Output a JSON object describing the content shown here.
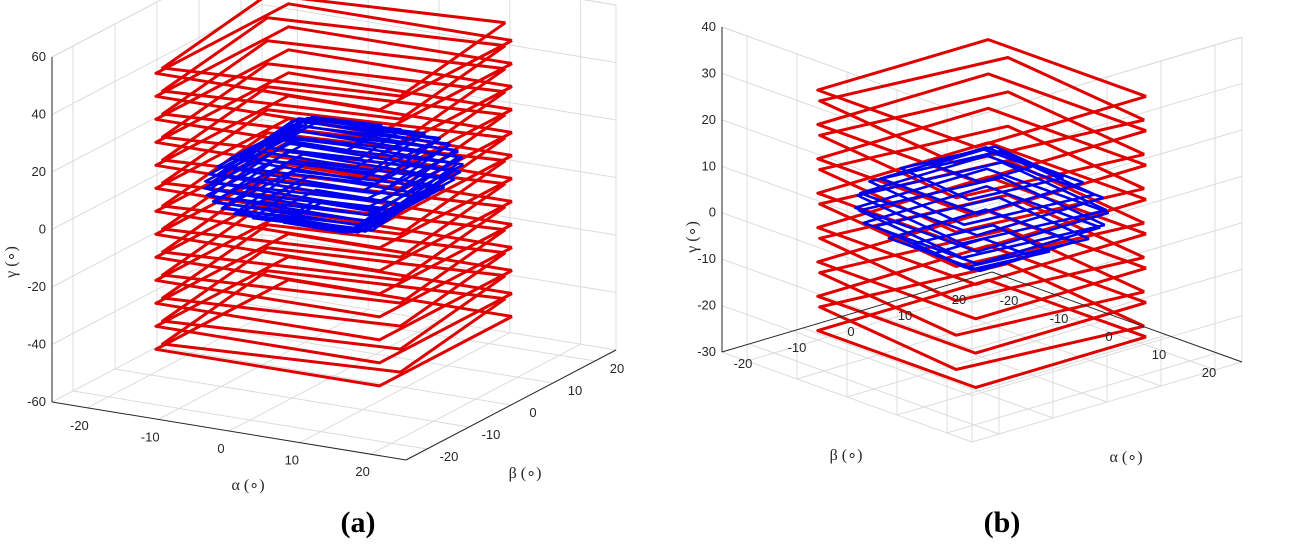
{
  "chart_data": [
    {
      "panel": "(a)",
      "type": "line",
      "plot": "3d",
      "xlabel": "α (∘)",
      "ylabel": "β (∘)",
      "zlabel": "γ (∘)",
      "xlim": [
        -25,
        25
      ],
      "ylim": [
        -25,
        25
      ],
      "zlim": [
        -60,
        60
      ],
      "xticks": [
        "-20",
        "-10",
        "0",
        "10",
        "20"
      ],
      "yticks": [
        "-20",
        "-10",
        "0",
        "10",
        "20"
      ],
      "zticks": [
        "-60",
        "-40",
        "-20",
        "0",
        "20",
        "40",
        "60"
      ],
      "grid": true,
      "series": [
        {
          "color": "#e00000",
          "description_values": {
            "half_width": 22,
            "z_from": -45,
            "z_to": 55,
            "z_step": 4
          }
        },
        {
          "color": "#0000ee",
          "description_values": {
            "half_width": 16,
            "z_from": -5,
            "z_to": 25,
            "z_step": 1.2
          }
        }
      ]
    },
    {
      "panel": "(b)",
      "type": "line",
      "plot": "3d",
      "xlabel": "α (∘)",
      "ylabel": "β (∘)",
      "zlabel": "γ (∘)",
      "xlim": [
        -25,
        25
      ],
      "ylim": [
        -25,
        25
      ],
      "zlim": [
        -30,
        40
      ],
      "xticks": [
        "-20",
        "-10",
        "0",
        "10",
        "20"
      ],
      "yticks": [
        "-20",
        "-10",
        "0",
        "10",
        "20"
      ],
      "zticks": [
        "-30",
        "-20",
        "-10",
        "0",
        "10",
        "20",
        "30",
        "40"
      ],
      "grid": true,
      "series": [
        {
          "color": "#e00000",
          "description_values": {
            "half_width": 22,
            "z_from": -25,
            "z_to": 30,
            "z_step": 3.7
          }
        },
        {
          "color": "#0000ee",
          "description_values": {
            "half_width": 17,
            "z_from": -8,
            "z_to": 12,
            "z_step": 1.6
          }
        }
      ]
    }
  ]
}
